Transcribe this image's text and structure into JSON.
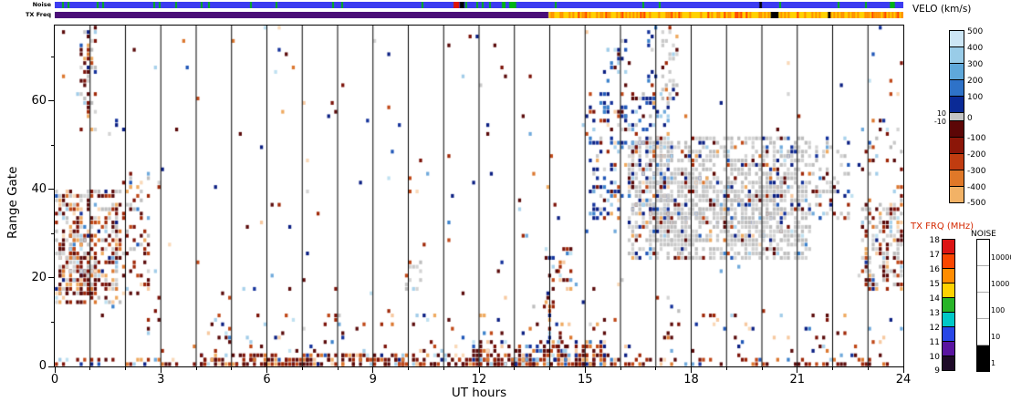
{
  "figure": {
    "bg": "#ffffff"
  },
  "strips": {
    "noise_label": "Noise",
    "tx_label": "TX Freq",
    "noise": {
      "base_color": "#3C3CF0",
      "tick_color": "#00B414",
      "tick_density": 0.055,
      "specials": [
        {
          "t": 11.28,
          "w": 0.16,
          "color": "#E01400"
        },
        {
          "t": 11.46,
          "w": 0.12,
          "color": "#000000"
        },
        {
          "t": 12.85,
          "w": 0.2,
          "color": "#00B414"
        },
        {
          "t": 23.62,
          "w": 0.14,
          "color": "#00B414"
        },
        {
          "t": 19.93,
          "w": 0.07,
          "color": "#000000"
        }
      ]
    },
    "tx": {
      "segments": [
        {
          "t0": 0,
          "t1": 13.97,
          "color": "#4A0E78"
        },
        {
          "t0": 13.97,
          "t1": 24,
          "color": "#FFD200"
        }
      ],
      "mottle": {
        "t0": 13.97,
        "t1": 24,
        "orange": "#FF8C00",
        "red": "#FF3C00",
        "orange_density": 0.38,
        "red_density": 0.07
      },
      "gaps": [
        {
          "t": 20.25,
          "w": 0.22,
          "color": "#000000"
        },
        {
          "t": 21.87,
          "w": 0.07,
          "color": "#000000"
        }
      ]
    }
  },
  "axes": {
    "xlabel": "UT hours",
    "ylabel": "Range Gate",
    "xticks": [
      0,
      3,
      6,
      9,
      12,
      15,
      18,
      21,
      24
    ],
    "yticks": [
      0,
      20,
      40,
      60
    ],
    "yminor": [
      10,
      30,
      50,
      70
    ],
    "xlim": [
      0,
      24
    ],
    "ylim": [
      0,
      77
    ]
  },
  "legend": {
    "velocity": {
      "title": "VELO (km/s)",
      "pos_labels": [
        "500",
        "400",
        "300",
        "200",
        "100"
      ],
      "zero_label": "0",
      "neg_labels": [
        "-100",
        "-200",
        "-300",
        "-400",
        "-500"
      ],
      "gs_upper": "10",
      "gs_lower": "-10",
      "pos_colors": [
        "#CCE6F5",
        "#99CCE8",
        "#5FA8DA",
        "#2E72C8",
        "#0A2A96"
      ],
      "gs_color": "#C4C4C4",
      "neg_colors": [
        "#5C0606",
        "#8C1608",
        "#C03C10",
        "#E07828",
        "#F2B266"
      ]
    },
    "tx_freq": {
      "title": "TX FRQ (MHz)",
      "title_color": "#D42800",
      "labels": [
        "18",
        "17",
        "16",
        "15",
        "14",
        "13",
        "12",
        "11",
        "10",
        "9"
      ],
      "colors": [
        "#DC1414",
        "#FA4600",
        "#FF8C00",
        "#FFD200",
        "#28B428",
        "#00C8C8",
        "#2846E6",
        "#5A14A0",
        "#1E0A28"
      ]
    },
    "noise_bar": {
      "title": "NOISE",
      "labels": [
        "10000",
        "1000",
        "100",
        "10",
        "1"
      ],
      "colors": [
        "#FFFFFF",
        "#FFFFFF",
        "#FFFFFF",
        "#FFFFFF",
        "#000000"
      ]
    }
  },
  "chart_data": {
    "type": "heatmap",
    "subtype": "radar range-time velocity parameter plot",
    "xlabel": "UT hours",
    "ylabel": "Range Gate",
    "xlim": [
      0,
      24
    ],
    "ylim": [
      0,
      77
    ],
    "xticks": [
      0,
      3,
      6,
      9,
      12,
      15,
      18,
      21,
      24
    ],
    "yticks": [
      0,
      20,
      40,
      60
    ],
    "hour_gridlines": [
      1,
      2,
      3,
      4,
      5,
      6,
      7,
      8,
      9,
      10,
      11,
      12,
      13,
      14,
      15,
      16,
      17,
      18,
      19,
      20,
      21,
      22,
      23
    ],
    "palettes": {
      "neg": [
        "#5A0A0A",
        "#7C1208",
        "#A02808",
        "#C04818",
        "#DC7830",
        "#EFAA60"
      ],
      "pos": [
        "#0A1E82",
        "#14329B",
        "#2057B8",
        "#3C82CC",
        "#70AADC",
        "#A8D2EC"
      ],
      "gray": [
        "#BEBEBE",
        "#C9C9C9",
        "#D4D4D4"
      ],
      "light": [
        "#F7C9A0",
        "#FAD9B8",
        "#BFE1F1",
        "#A2CDE9"
      ]
    },
    "regions": [
      {
        "desc": "sparse background scatter",
        "x0": 0,
        "x1": 24,
        "g0": 2,
        "g1": 77,
        "d": 0.012,
        "w": {
          "neg": 0.42,
          "pos": 0.32,
          "light": 0.17,
          "gray": 0.09
        }
      },
      {
        "desc": "low-gate sparse scatter",
        "x0": 2.6,
        "x1": 24,
        "g0": 2,
        "g1": 12,
        "d": 0.05,
        "w": {
          "neg": 0.6,
          "pos": 0.2,
          "light": 0.2
        }
      },
      {
        "desc": "near-range band full day",
        "x0": 0,
        "x1": 24,
        "g0": 0,
        "g1": 2,
        "d": 0.32,
        "w": {
          "neg": 0.78,
          "pos": 0.12,
          "light": 0.1
        }
      },
      {
        "desc": "near-range dense band",
        "x0": 4,
        "x1": 15.6,
        "g0": 0,
        "g1": 3,
        "d": 0.5,
        "w": {
          "neg": 0.8,
          "pos": 0.12,
          "light": 0.08
        }
      },
      {
        "desc": "near-range very dense 12-15.6 UT",
        "x0": 11.8,
        "x1": 15.6,
        "g0": 0,
        "g1": 6,
        "d": 0.5,
        "w": {
          "neg": 0.75,
          "pos": 0.15,
          "light": 0.1
        }
      },
      {
        "desc": "morning scatter cluster 0-2 UT",
        "x0": 0,
        "x1": 1.9,
        "g0": 14,
        "g1": 40,
        "d": 0.48,
        "w": {
          "neg": 0.6,
          "gray": 0.22,
          "pos": 0.07,
          "light": 0.11
        }
      },
      {
        "desc": "morning core",
        "x0": 0.1,
        "x1": 1.2,
        "g0": 16,
        "g1": 30,
        "d": 0.6,
        "w": {
          "neg": 0.58,
          "gray": 0.32,
          "pos": 0.04,
          "light": 0.06
        }
      },
      {
        "desc": "morning high-gate streak",
        "x0": 0.7,
        "x1": 1.15,
        "g0": 52,
        "g1": 77,
        "d": 0.3,
        "w": {
          "neg": 0.5,
          "gray": 0.3,
          "pos": 0.1,
          "light": 0.1
        }
      },
      {
        "desc": "morning secondary 2-2.7 UT",
        "x0": 1.9,
        "x1": 2.7,
        "g0": 16,
        "g1": 46,
        "d": 0.26,
        "w": {
          "neg": 0.55,
          "gray": 0.2,
          "pos": 0.13,
          "light": 0.12
        }
      },
      {
        "desc": "14 UT column",
        "x0": 13.85,
        "x1": 14.65,
        "g0": 2,
        "g1": 28,
        "d": 0.2,
        "w": {
          "neg": 0.6,
          "pos": 0.25,
          "light": 0.15
        }
      },
      {
        "desc": "afternoon blue (positive velocity) cluster",
        "x0": 15.1,
        "x1": 17.4,
        "g0": 33,
        "g1": 62,
        "d": 0.3,
        "w": {
          "pos": 0.65,
          "neg": 0.15,
          "gray": 0.12,
          "light": 0.08
        }
      },
      {
        "desc": "blue high gates",
        "x0": 15.4,
        "x1": 16.15,
        "g0": 55,
        "g1": 72,
        "d": 0.18,
        "w": {
          "pos": 0.7,
          "neg": 0.2,
          "light": 0.1
        }
      },
      {
        "desc": "evening ground scatter main mass",
        "x0": 16.2,
        "x1": 21.4,
        "g0": 24,
        "g1": 52,
        "d": 0.55,
        "w": {
          "gray": 0.76,
          "neg": 0.11,
          "pos": 0.11,
          "light": 0.02
        }
      },
      {
        "desc": "ground scatter core",
        "x0": 17.0,
        "x1": 20.6,
        "g0": 28,
        "g1": 44,
        "d": 0.45,
        "w": {
          "gray": 0.85,
          "neg": 0.08,
          "pos": 0.07
        }
      },
      {
        "desc": "ground scatter tail",
        "x0": 21.4,
        "x1": 22.5,
        "g0": 33,
        "g1": 52,
        "d": 0.28,
        "w": {
          "gray": 0.58,
          "neg": 0.22,
          "pos": 0.2
        }
      },
      {
        "desc": "pre-midnight cluster",
        "x0": 22.8,
        "x1": 24,
        "g0": 17,
        "g1": 38,
        "d": 0.5,
        "w": {
          "gray": 0.45,
          "neg": 0.42,
          "pos": 0.06,
          "light": 0.07
        }
      },
      {
        "desc": "pre-midnight upper sparse",
        "x0": 22.6,
        "x1": 24,
        "g0": 38,
        "g1": 56,
        "d": 0.12,
        "w": {
          "neg": 0.6,
          "gray": 0.2,
          "pos": 0.1,
          "light": 0.1
        }
      },
      {
        "desc": "17.4 UT top gray streak",
        "x0": 17.15,
        "x1": 17.6,
        "g0": 60,
        "g1": 77,
        "d": 0.3,
        "w": {
          "gray": 0.7,
          "neg": 0.15,
          "pos": 0.15
        }
      },
      {
        "desc": "17 UT top navy specks",
        "x0": 16.75,
        "x1": 17.05,
        "g0": 63,
        "g1": 77,
        "d": 0.22,
        "w": {
          "pos": 0.7,
          "neg": 0.2,
          "gray": 0.1
        }
      },
      {
        "desc": "10 UT small gray patch",
        "x0": 9.9,
        "x1": 10.35,
        "g0": 17,
        "g1": 24,
        "d": 0.35,
        "w": {
          "gray": 0.7,
          "neg": 0.2,
          "light": 0.1
        }
      }
    ]
  }
}
